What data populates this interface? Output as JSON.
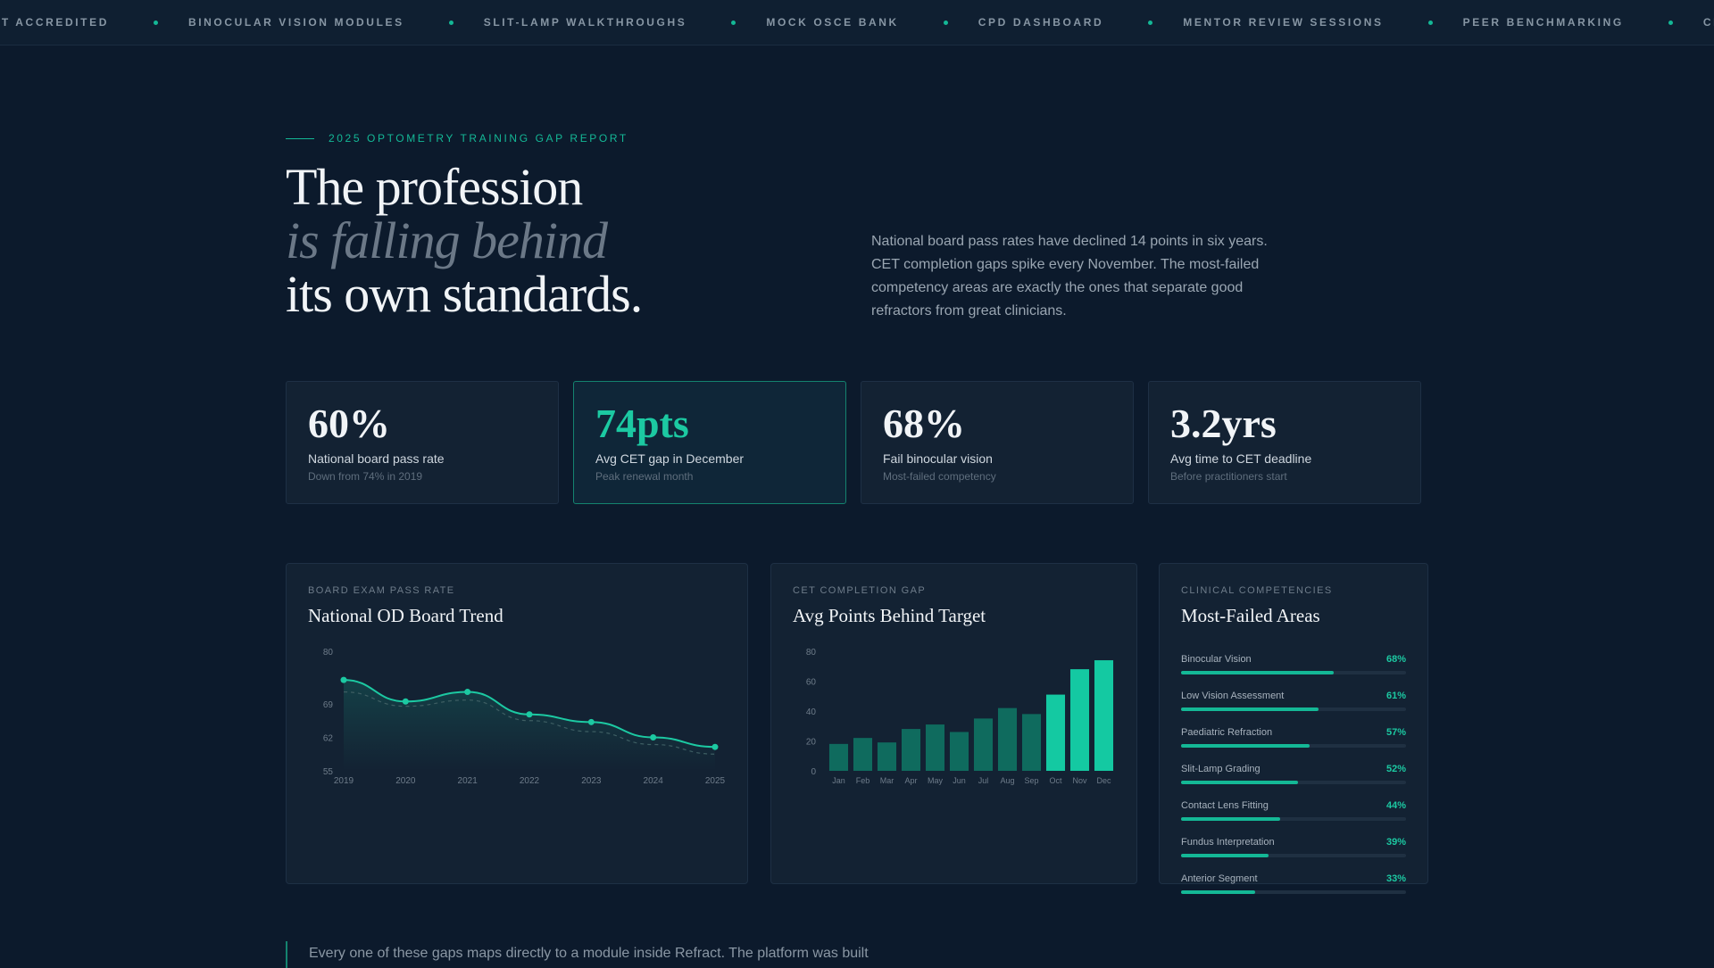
{
  "ticker": {
    "items": [
      "CET ACCREDITED",
      "BINOCULAR VISION MODULES",
      "SLIT-LAMP WALKTHROUGHS",
      "MOCK OSCE BANK",
      "CPD DASHBOARD",
      "MENTOR REVIEW SESSIONS",
      "PEER BENCHMARKING",
      "CLINICAL CASE LIBRARY"
    ]
  },
  "hero": {
    "eyebrow": "2025 OPTOMETRY TRAINING GAP REPORT",
    "headline": [
      "The profession",
      "is falling behind",
      "its own standards."
    ],
    "lede": "National board pass rates have declined 14 points in six years. CET completion gaps spike every November. The most-failed competency areas are exactly the ones that separate good refractors from great clinicians."
  },
  "stats": [
    {
      "value": "60%",
      "label": "National board pass rate",
      "sub": "Down from 74% in 2019",
      "highlight": false
    },
    {
      "value": "74pts",
      "label": "Avg CET gap in December",
      "sub": "Peak renewal month",
      "highlight": true
    },
    {
      "value": "68%",
      "label": "Fail binocular vision",
      "sub": "Most-failed competency",
      "highlight": false
    },
    {
      "value": "3.2yrs",
      "label": "Avg time to CET deadline",
      "sub": "Before practitioners start",
      "highlight": false
    }
  ],
  "panels": {
    "trend": {
      "eyebrow": "BOARD EXAM PASS RATE",
      "title": "National OD Board Trend"
    },
    "gap": {
      "eyebrow": "CET COMPLETION GAP",
      "title": "Avg Points Behind Target"
    },
    "comp": {
      "eyebrow": "CLINICAL COMPETENCIES",
      "title": "Most-Failed Areas"
    }
  },
  "chart_data": [
    {
      "type": "line",
      "title": "National OD Board Trend",
      "x": [
        "2019",
        "2020",
        "2021",
        "2022",
        "2023",
        "2024",
        "2025"
      ],
      "series": [
        {
          "values": [
            74,
            69.5,
            71.5,
            66.8,
            65.2,
            62,
            60
          ]
        },
        {
          "values": [
            71.5,
            68.5,
            69.8,
            65.5,
            63.2,
            60.5,
            58.5
          ],
          "style": "dashed"
        }
      ],
      "yticks": [
        "55",
        "62",
        "69",
        "80"
      ],
      "ylim": [
        55,
        80
      ],
      "color": "#1cc9a2"
    },
    {
      "type": "bar",
      "title": "Avg Points Behind Target",
      "categories": [
        "Jan",
        "Feb",
        "Mar",
        "Apr",
        "May",
        "Jun",
        "Jul",
        "Aug",
        "Sep",
        "Oct",
        "Nov",
        "Dec"
      ],
      "values": [
        18,
        22,
        19,
        28,
        31,
        26,
        35,
        42,
        38,
        51,
        68,
        74
      ],
      "highlighted": [
        "Oct",
        "Nov",
        "Dec"
      ],
      "yticks": [
        "0",
        "20",
        "40",
        "60",
        "80"
      ],
      "ylim": [
        0,
        80
      ],
      "colors": {
        "base": "#0f6b5e",
        "highlight": "#14c9a2"
      }
    }
  ],
  "competencies": [
    {
      "name": "Binocular Vision",
      "pct": "68%",
      "value": 68
    },
    {
      "name": "Low Vision Assessment",
      "pct": "61%",
      "value": 61
    },
    {
      "name": "Paediatric Refraction",
      "pct": "57%",
      "value": 57
    },
    {
      "name": "Slit-Lamp Grading",
      "pct": "52%",
      "value": 52
    },
    {
      "name": "Contact Lens Fitting",
      "pct": "44%",
      "value": 44
    },
    {
      "name": "Fundus Interpretation",
      "pct": "39%",
      "value": 39
    },
    {
      "name": "Anterior Segment",
      "pct": "33%",
      "value": 33
    }
  ],
  "footer": {
    "quote": "Every one of these gaps maps directly to a module inside Refract. The platform was built"
  }
}
